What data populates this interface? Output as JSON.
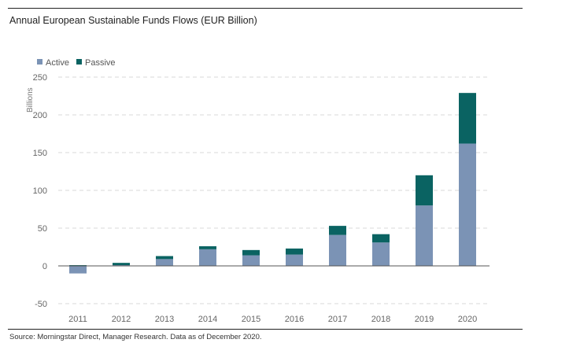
{
  "chart_data": {
    "type": "bar",
    "stacked": true,
    "title": "Annual European Sustainable Funds Flows (EUR Billion)",
    "xlabel": "",
    "ylabel": "Billions",
    "categories": [
      "2011",
      "2012",
      "2013",
      "2014",
      "2015",
      "2016",
      "2017",
      "2018",
      "2019",
      "2020"
    ],
    "series": [
      {
        "name": "Active",
        "color": "#7b93b5",
        "values": [
          -10,
          1,
          9,
          22,
          14,
          15,
          41,
          31,
          80,
          162
        ]
      },
      {
        "name": "Passive",
        "color": "#0a6362",
        "values": [
          1,
          3,
          4,
          4,
          7,
          8,
          12,
          11,
          40,
          67
        ]
      }
    ],
    "ylim": [
      -50,
      250
    ],
    "yticks": [
      -50,
      0,
      50,
      100,
      150,
      200,
      250
    ],
    "grid": true,
    "legend_position": "top-left",
    "source": "Source: Morningstar Direct, Manager Research. Data as of December 2020."
  }
}
